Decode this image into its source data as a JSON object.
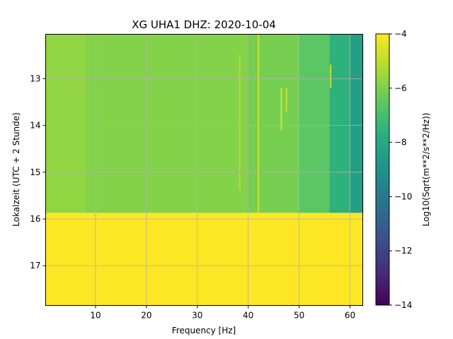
{
  "chart_data": {
    "type": "heatmap",
    "title": "XG UHA1  DHZ: 2020-10-04",
    "xlabel": "Frequency [Hz]",
    "ylabel": "Lokalzeit (UTC + 2 Stunde)",
    "xlim": [
      0.2,
      62.5
    ],
    "ylim": [
      17.85,
      12.05
    ],
    "y_inverted": true,
    "x_ticks": [
      10,
      20,
      30,
      40,
      50,
      60
    ],
    "x_tick_labels": [
      "10",
      "20",
      "30",
      "40",
      "50",
      "60"
    ],
    "y_ticks": [
      13,
      14,
      15,
      16,
      17
    ],
    "y_tick_labels": [
      "13",
      "14",
      "15",
      "16",
      "17"
    ],
    "grid": true,
    "colormap": "viridis",
    "colorbar": {
      "label": "Log10(Sqrt(m**2/s**2/Hz))",
      "vmin": -14,
      "vmax": -4,
      "ticks": [
        -14,
        -12,
        -10,
        -8,
        -6,
        -4
      ],
      "tick_labels": [
        "−14",
        "−12",
        "−10",
        "−8",
        "−6",
        "−4"
      ]
    },
    "data_end_time": 15.87,
    "regions": [
      {
        "y_range": [
          12.05,
          15.87
        ],
        "x_range": [
          0.2,
          8
        ],
        "value": -5.7
      },
      {
        "y_range": [
          12.05,
          15.87
        ],
        "x_range": [
          8,
          40
        ],
        "value": -5.9
      },
      {
        "y_range": [
          12.05,
          15.87
        ],
        "x_range": [
          40,
          50
        ],
        "value": -6.1
      },
      {
        "y_range": [
          12.05,
          15.87
        ],
        "x_range": [
          50,
          56
        ],
        "value": -6.6
      },
      {
        "y_range": [
          12.05,
          15.87
        ],
        "x_range": [
          56,
          60
        ],
        "value": -7.6
      },
      {
        "y_range": [
          12.05,
          15.87
        ],
        "x_range": [
          60,
          62.5
        ],
        "value": -8.4
      },
      {
        "y_range": [
          15.87,
          17.85
        ],
        "x_range": [
          0.2,
          62.5
        ],
        "value": -4
      }
    ],
    "features": [
      {
        "x": 42,
        "y_range": [
          12.05,
          15.87
        ],
        "value": -4.8
      },
      {
        "x": 38.3,
        "y_range": [
          12.5,
          15.4
        ],
        "value": -5.2
      },
      {
        "x": 46.5,
        "y_range": [
          13.2,
          14.1
        ],
        "value": -4.6
      },
      {
        "x": 47.5,
        "y_range": [
          13.2,
          13.7
        ],
        "value": -4.8
      },
      {
        "x": 56.2,
        "y_range": [
          12.7,
          13.2
        ],
        "value": -4.9
      }
    ]
  }
}
